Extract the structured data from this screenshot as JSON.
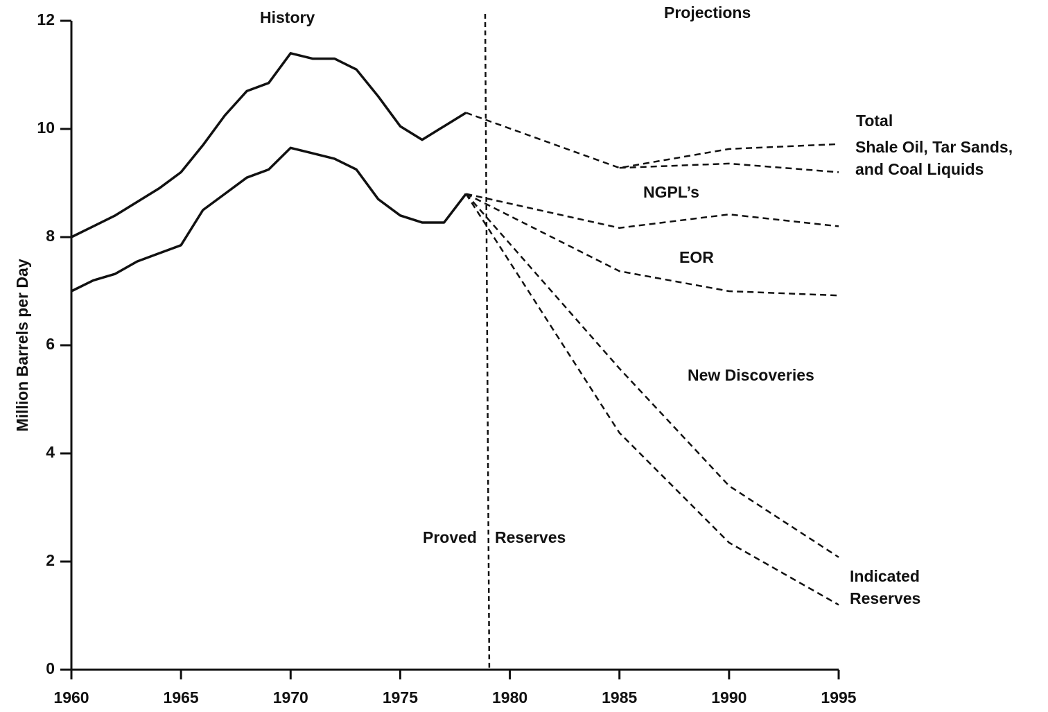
{
  "chart_data": {
    "type": "line",
    "ylabel": "Million Barrels per Day",
    "xlim": [
      1960,
      1995
    ],
    "ylim": [
      0,
      12
    ],
    "xticks": [
      1960,
      1965,
      1970,
      1975,
      1980,
      1985,
      1990,
      1995
    ],
    "yticks": [
      0,
      2,
      4,
      6,
      8,
      10,
      12
    ],
    "divider_x": 1979,
    "annotations": [
      "History",
      "Projections",
      "Total",
      "Shale Oil, Tar Sands,",
      "and Coal Liquids",
      "NGPL’s",
      "EOR",
      "New Discoveries",
      "Proved",
      "Reserves",
      "Indicated",
      "Reserves"
    ],
    "series": [
      {
        "color": "#111",
        "style": "solid",
        "x": [
          1960,
          1961,
          1962,
          1963,
          1964,
          1965,
          1966,
          1967,
          1968,
          1969,
          1970,
          1971,
          1972,
          1973,
          1974,
          1975,
          1976,
          1977,
          1978
        ],
        "values": [
          8.0,
          8.2,
          8.4,
          8.65,
          8.9,
          9.2,
          9.7,
          10.25,
          10.7,
          10.85,
          11.4,
          11.3,
          11.3,
          11.1,
          10.6,
          10.05,
          9.8,
          10.05,
          10.3
        ]
      },
      {
        "color": "#111",
        "style": "solid",
        "x": [
          1960,
          1961,
          1962,
          1963,
          1964,
          1965,
          1966,
          1967,
          1968,
          1969,
          1970,
          1971,
          1972,
          1973,
          1974,
          1975,
          1976,
          1977,
          1978
        ],
        "values": [
          7.0,
          7.2,
          7.32,
          7.55,
          7.7,
          7.85,
          8.5,
          8.8,
          9.1,
          9.25,
          9.65,
          9.55,
          9.45,
          9.25,
          8.7,
          8.4,
          8.27,
          8.27,
          8.8
        ]
      },
      {
        "color": "#111",
        "style": "dashed",
        "x": [
          1978,
          1985,
          1990,
          1995
        ],
        "values": [
          10.3,
          9.28,
          9.63,
          9.72
        ]
      },
      {
        "color": "#111",
        "style": "dashed",
        "x": [
          1985,
          1990,
          1995
        ],
        "values": [
          9.28,
          9.36,
          9.2
        ]
      },
      {
        "color": "#111",
        "style": "dashed",
        "x": [
          1978,
          1985,
          1990,
          1995
        ],
        "values": [
          8.8,
          8.17,
          8.42,
          8.2
        ]
      },
      {
        "color": "#111",
        "style": "dashed",
        "x": [
          1978,
          1985,
          1990,
          1995
        ],
        "values": [
          8.8,
          7.37,
          7.0,
          6.92
        ]
      },
      {
        "color": "#111",
        "style": "dashed",
        "x": [
          1978,
          1985,
          1990,
          1995
        ],
        "values": [
          8.8,
          5.57,
          3.4,
          2.08
        ]
      },
      {
        "color": "#111",
        "style": "dashed",
        "x": [
          1978,
          1985,
          1990,
          1995
        ],
        "values": [
          8.8,
          4.38,
          2.35,
          1.2
        ]
      }
    ]
  }
}
